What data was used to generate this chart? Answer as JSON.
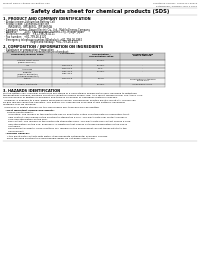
{
  "bg_color": "#ffffff",
  "header_left": "Product Name: Lithium Ion Battery Cell",
  "header_right_line1": "Substance number: TPS60101-00010",
  "header_right_line2": "Established / Revision: Dec.1.2009",
  "title": "Safety data sheet for chemical products (SDS)",
  "section1_header": "1. PRODUCT AND COMPANY IDENTIFICATION",
  "section1_lines": [
    "  · Product name: Lithium Ion Battery Cell",
    "  · Product code: Cylindrical-type cell",
    "       INR18650J, INR18650L, INR18650A",
    "  · Company name:   Sanyo Electric Co., Ltd., Mobile Energy Company",
    "  · Address:          2031  Kannonyama, Sumoto-City, Hyogo, Japan",
    "  · Telephone number:   +81-799-26-4111",
    "  · Fax number:   +81-799-26-4120",
    "  · Emergency telephone number (Weekday): +81-799-26-3962",
    "                                    (Night and holiday): +81-799-26-4101"
  ],
  "section2_header": "2. COMPOSITION / INFORMATION ON INGREDIENTS",
  "section2_lines": [
    "  · Substance or preparation: Preparation",
    "  · Information about the chemical nature of product:"
  ],
  "table_headers": [
    "Component/chemical name",
    "CAS number",
    "Concentration /\nConcentration range",
    "Classification and\nhazard labeling"
  ],
  "table_rows": [
    [
      "Lithium cobalt oxide\n(LiMnxCoyNizO2)",
      "-",
      "30-60%",
      "-"
    ],
    [
      "Iron",
      "7439-89-6",
      "15-25%",
      "-"
    ],
    [
      "Aluminum",
      "7429-90-5",
      "2-5%",
      "-"
    ],
    [
      "Graphite\n(Flake or graphite-I)\n(Artificial graphite-I)",
      "7782-42-5\n7782-44-2",
      "10-25%",
      "-"
    ],
    [
      "Copper",
      "7440-50-8",
      "5-15%",
      "Sensitization of the skin\ngroup No.2"
    ],
    [
      "Organic electrolyte",
      "-",
      "10-20%",
      "Inflammable liquid"
    ]
  ],
  "section3_header": "3. HAZARDS IDENTIFICATION",
  "section3_lines": [
    "For the battery cell, chemical substances are stored in a hermetically sealed metal case, designed to withstand",
    "temperatures changes, pressure variations-conditions during normal use. As a result, during normal use, there is no",
    "physical danger of ignition or explosion and there is no danger of hazardous materials leakage.",
    "  However, if exposed to a fire, added mechanical shocks, decomposed, shorted electric circuit etc. misuse can",
    "be gas release cannot be operated. The battery cell case will be breached at fire patterns, hazardous",
    "materials may be released.",
    "  Moreover, if heated strongly by the surrounding fire, toxic gas may be emitted."
  ],
  "bullet1_header": "  · Most important hazard and effects:",
  "bullet1_lines": [
    "     Human health effects:",
    "       Inhalation: The release of the electrolyte has an anesthetic action and stimulates in respiratory tract.",
    "       Skin contact: The release of the electrolyte stimulates a skin. The electrolyte skin contact causes a",
    "       sore and stimulation on the skin.",
    "       Eye contact: The release of the electrolyte stimulates eyes. The electrolyte eye contact causes a sore",
    "       and stimulation on the eye. Especially, a substance that causes a strong inflammation of the eye is",
    "       contained.",
    "       Environmental effects: Since a battery cell remains in the environment, do not throw out it into the",
    "       environment."
  ],
  "bullet2_header": "  · Specific hazards:",
  "bullet2_lines": [
    "     If the electrolyte contacts with water, it will generate detrimental hydrogen fluoride.",
    "     Since the used electrolyte is inflammable liquid, do not bring close to fire."
  ],
  "footer_line": true
}
